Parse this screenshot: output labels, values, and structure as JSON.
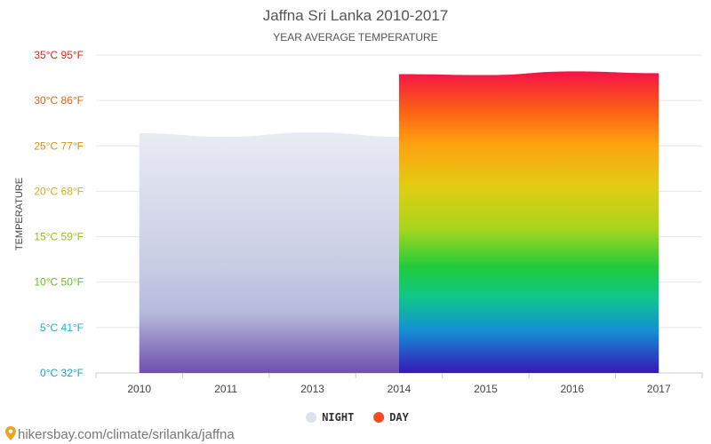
{
  "chart_data": {
    "type": "area",
    "title": "Jaffna Sri Lanka 2010-2017",
    "subtitle": "YEAR AVERAGE TEMPERATURE",
    "ylabel": "TEMPERATURE",
    "ylim": [
      0,
      35
    ],
    "grid": true,
    "y_ticks": [
      {
        "value": 0,
        "label": "0°C 32°F",
        "color": "#1aa3c9"
      },
      {
        "value": 5,
        "label": "5°C 41°F",
        "color": "#1ab3c9"
      },
      {
        "value": 10,
        "label": "10°C 50°F",
        "color": "#66c21a"
      },
      {
        "value": 15,
        "label": "15°C 59°F",
        "color": "#9ac21a"
      },
      {
        "value": 20,
        "label": "20°C 68°F",
        "color": "#c9b51a"
      },
      {
        "value": 25,
        "label": "25°C 77°F",
        "color": "#e08a1a"
      },
      {
        "value": 30,
        "label": "30°C 86°F",
        "color": "#e0621a"
      },
      {
        "value": 35,
        "label": "35°C 95°F",
        "color": "#e0231a"
      }
    ],
    "categories": [
      "2010",
      "2011",
      "2013",
      "2014",
      "2015",
      "2016",
      "2017"
    ],
    "series": [
      {
        "name": "NIGHT",
        "values": [
          26.4,
          26.0,
          26.5,
          26.0,
          null,
          null,
          null
        ],
        "color": "#dde1ee"
      },
      {
        "name": "DAY",
        "values": [
          null,
          null,
          null,
          32.9,
          32.8,
          33.2,
          33.0
        ],
        "color": "#f04e1f"
      }
    ],
    "legend_position": "bottom-center"
  },
  "footer": {
    "text": "hikersbay.com/climate/srilanka/jaffna",
    "icon": "location-pin-icon"
  }
}
